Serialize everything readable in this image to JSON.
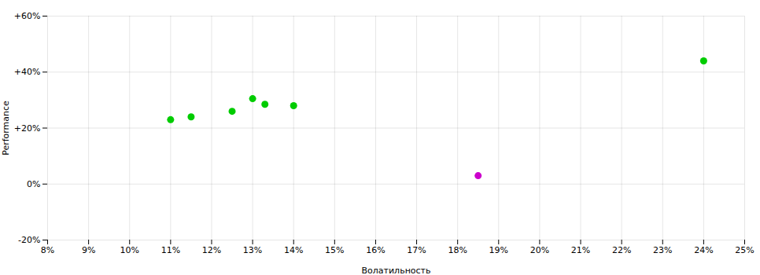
{
  "chart_data": {
    "type": "scatter",
    "xlabel": "Волатильность",
    "ylabel": "Performance",
    "series": [
      {
        "color": "#00cc00",
        "x": [
          11.0,
          11.5,
          12.5,
          13.0,
          13.3,
          14.0,
          24.0
        ],
        "values": [
          23.0,
          24.0,
          26.0,
          30.5,
          28.5,
          28.0,
          44.0
        ]
      },
      {
        "color": "#cc00cc",
        "x": [
          18.5
        ],
        "values": [
          3.0
        ]
      }
    ],
    "xlim": [
      8,
      25
    ],
    "ylim": [
      -20,
      60
    ],
    "xticks": [
      {
        "value": 8,
        "label": "8%"
      },
      {
        "value": 9,
        "label": "9%"
      },
      {
        "value": 10,
        "label": "10%"
      },
      {
        "value": 11,
        "label": "11%"
      },
      {
        "value": 12,
        "label": "12%"
      },
      {
        "value": 13,
        "label": "13%"
      },
      {
        "value": 14,
        "label": "14%"
      },
      {
        "value": 15,
        "label": "15%"
      },
      {
        "value": 16,
        "label": "16%"
      },
      {
        "value": 17,
        "label": "17%"
      },
      {
        "value": 18,
        "label": "18%"
      },
      {
        "value": 19,
        "label": "19%"
      },
      {
        "value": 20,
        "label": "20%"
      },
      {
        "value": 21,
        "label": "21%"
      },
      {
        "value": 22,
        "label": "22%"
      },
      {
        "value": 23,
        "label": "23%"
      },
      {
        "value": 24,
        "label": "24%"
      },
      {
        "value": 25,
        "label": "25%"
      }
    ],
    "yticks": [
      {
        "value": -20,
        "label": "-20%"
      },
      {
        "value": 0,
        "label": "0%"
      },
      {
        "value": 20,
        "label": "+20%"
      },
      {
        "value": 40,
        "label": "+40%"
      },
      {
        "value": 60,
        "label": "+60%"
      }
    ],
    "grid": true
  }
}
